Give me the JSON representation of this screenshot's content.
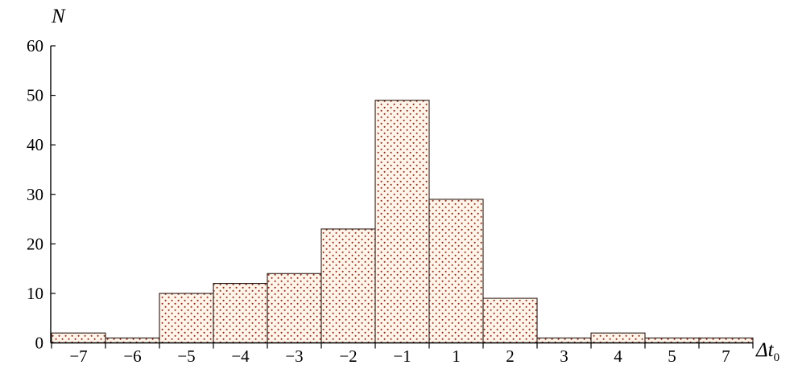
{
  "chart_data": {
    "type": "bar",
    "title": "",
    "xlabel": {
      "main": "Δt",
      "subscript": "0"
    },
    "ylabel": "N",
    "ylim": [
      0,
      60
    ],
    "yticks": [
      0,
      10,
      20,
      30,
      40,
      50,
      60
    ],
    "grid": false,
    "legend": "none",
    "categories": [
      "−7",
      "−6",
      "−5",
      "−4",
      "−3",
      "−2",
      "−1",
      "1",
      "2",
      "3",
      "4",
      "5",
      "7"
    ],
    "values": [
      2,
      1,
      10,
      12,
      14,
      23,
      49,
      29,
      9,
      1,
      2,
      1,
      1
    ],
    "colors": {
      "bar_fill": "#fff4ea",
      "dot_color": "#8b2d18",
      "outline": "#2a1a14",
      "axis": "#000000"
    }
  }
}
